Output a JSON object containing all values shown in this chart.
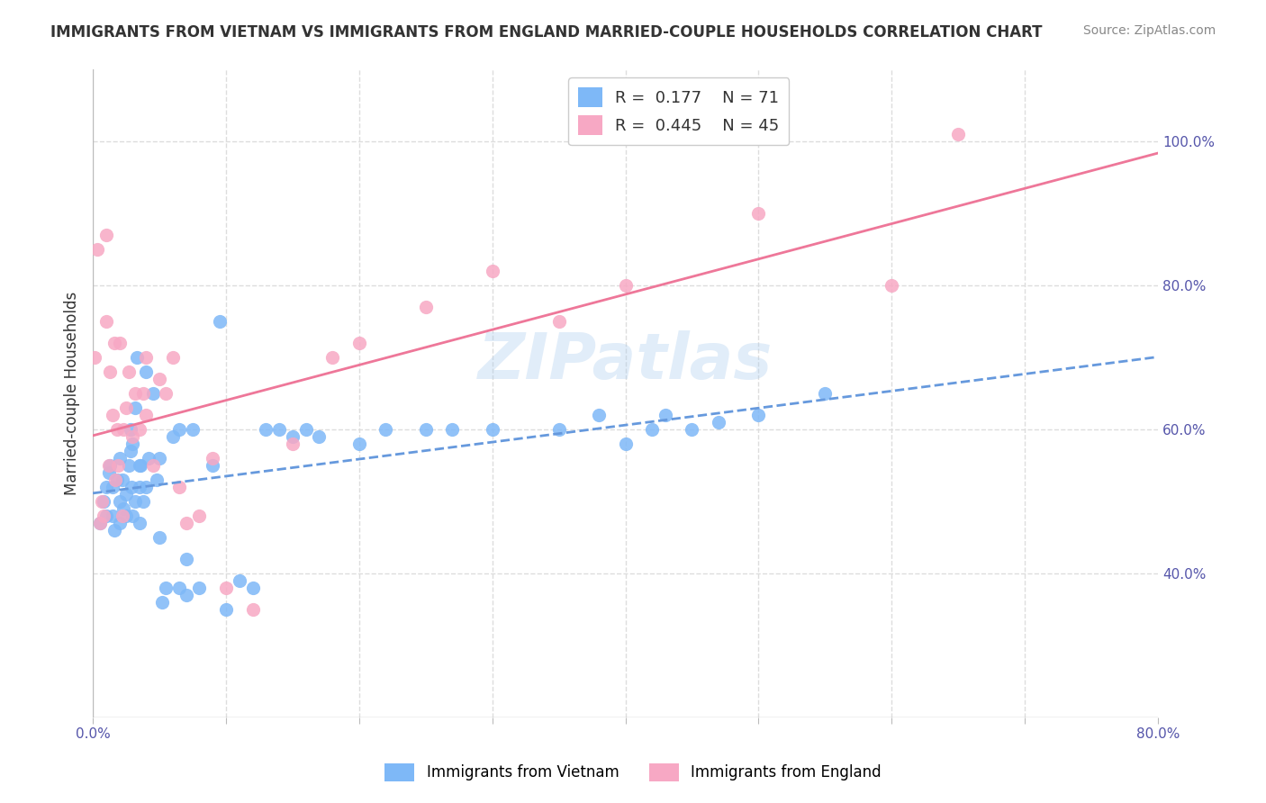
{
  "title": "IMMIGRANTS FROM VIETNAM VS IMMIGRANTS FROM ENGLAND MARRIED-COUPLE HOUSEHOLDS CORRELATION CHART",
  "source": "Source: ZipAtlas.com",
  "xlabel_bottom": "",
  "ylabel": "Married-couple Households",
  "xlim": [
    0.0,
    0.8
  ],
  "ylim": [
    0.0,
    1.1
  ],
  "xticks": [
    0.0,
    0.1,
    0.2,
    0.3,
    0.4,
    0.5,
    0.6,
    0.7,
    0.8
  ],
  "xtick_labels": [
    "0.0%",
    "",
    "",
    "",
    "",
    "",
    "",
    "",
    "80.0%"
  ],
  "ytick_labels_right": [
    "",
    "40.0%",
    "",
    "60.0%",
    "",
    "80.0%",
    "",
    "100.0%"
  ],
  "yticks_right": [
    0.3,
    0.4,
    0.5,
    0.6,
    0.7,
    0.8,
    0.9,
    1.0
  ],
  "legend_r1": "R =  0.177",
  "legend_n1": "N = 71",
  "legend_r2": "R =  0.445",
  "legend_n2": "N = 45",
  "color_vietnam": "#7EB8F7",
  "color_england": "#F7A8C4",
  "color_line_vietnam": "#6699DD",
  "color_line_england": "#EE7799",
  "watermark": "ZIPatlas",
  "legend1_label": "Immigrants from Vietnam",
  "legend2_label": "Immigrants from England",
  "vietnam_x": [
    0.005,
    0.008,
    0.01,
    0.01,
    0.012,
    0.013,
    0.015,
    0.015,
    0.016,
    0.018,
    0.02,
    0.02,
    0.02,
    0.022,
    0.023,
    0.025,
    0.025,
    0.027,
    0.028,
    0.028,
    0.029,
    0.03,
    0.03,
    0.032,
    0.032,
    0.033,
    0.035,
    0.035,
    0.035,
    0.036,
    0.038,
    0.04,
    0.04,
    0.042,
    0.045,
    0.048,
    0.05,
    0.05,
    0.052,
    0.055,
    0.06,
    0.065,
    0.065,
    0.07,
    0.07,
    0.075,
    0.08,
    0.09,
    0.095,
    0.1,
    0.11,
    0.12,
    0.13,
    0.14,
    0.15,
    0.16,
    0.17,
    0.2,
    0.22,
    0.25,
    0.27,
    0.3,
    0.35,
    0.38,
    0.4,
    0.42,
    0.43,
    0.45,
    0.47,
    0.5,
    0.55
  ],
  "vietnam_y": [
    0.47,
    0.5,
    0.48,
    0.52,
    0.54,
    0.55,
    0.52,
    0.48,
    0.46,
    0.53,
    0.5,
    0.56,
    0.47,
    0.53,
    0.49,
    0.51,
    0.48,
    0.55,
    0.6,
    0.57,
    0.52,
    0.58,
    0.48,
    0.63,
    0.5,
    0.7,
    0.55,
    0.52,
    0.47,
    0.55,
    0.5,
    0.68,
    0.52,
    0.56,
    0.65,
    0.53,
    0.56,
    0.45,
    0.36,
    0.38,
    0.59,
    0.6,
    0.38,
    0.42,
    0.37,
    0.6,
    0.38,
    0.55,
    0.75,
    0.35,
    0.39,
    0.38,
    0.6,
    0.6,
    0.59,
    0.6,
    0.59,
    0.58,
    0.6,
    0.6,
    0.6,
    0.6,
    0.6,
    0.62,
    0.58,
    0.6,
    0.62,
    0.6,
    0.61,
    0.62,
    0.65
  ],
  "england_x": [
    0.001,
    0.003,
    0.005,
    0.007,
    0.008,
    0.01,
    0.01,
    0.012,
    0.013,
    0.015,
    0.016,
    0.017,
    0.018,
    0.019,
    0.02,
    0.022,
    0.023,
    0.025,
    0.027,
    0.03,
    0.032,
    0.035,
    0.038,
    0.04,
    0.04,
    0.045,
    0.05,
    0.055,
    0.06,
    0.065,
    0.07,
    0.08,
    0.09,
    0.1,
    0.12,
    0.15,
    0.18,
    0.2,
    0.25,
    0.3,
    0.35,
    0.4,
    0.5,
    0.6,
    0.65
  ],
  "england_y": [
    0.7,
    0.85,
    0.47,
    0.5,
    0.48,
    0.87,
    0.75,
    0.55,
    0.68,
    0.62,
    0.72,
    0.53,
    0.6,
    0.55,
    0.72,
    0.48,
    0.6,
    0.63,
    0.68,
    0.59,
    0.65,
    0.6,
    0.65,
    0.7,
    0.62,
    0.55,
    0.67,
    0.65,
    0.7,
    0.52,
    0.47,
    0.48,
    0.56,
    0.38,
    0.35,
    0.58,
    0.7,
    0.72,
    0.77,
    0.82,
    0.75,
    0.8,
    0.9,
    0.8,
    1.01
  ],
  "background_color": "#FFFFFF",
  "grid_color": "#DDDDDD"
}
